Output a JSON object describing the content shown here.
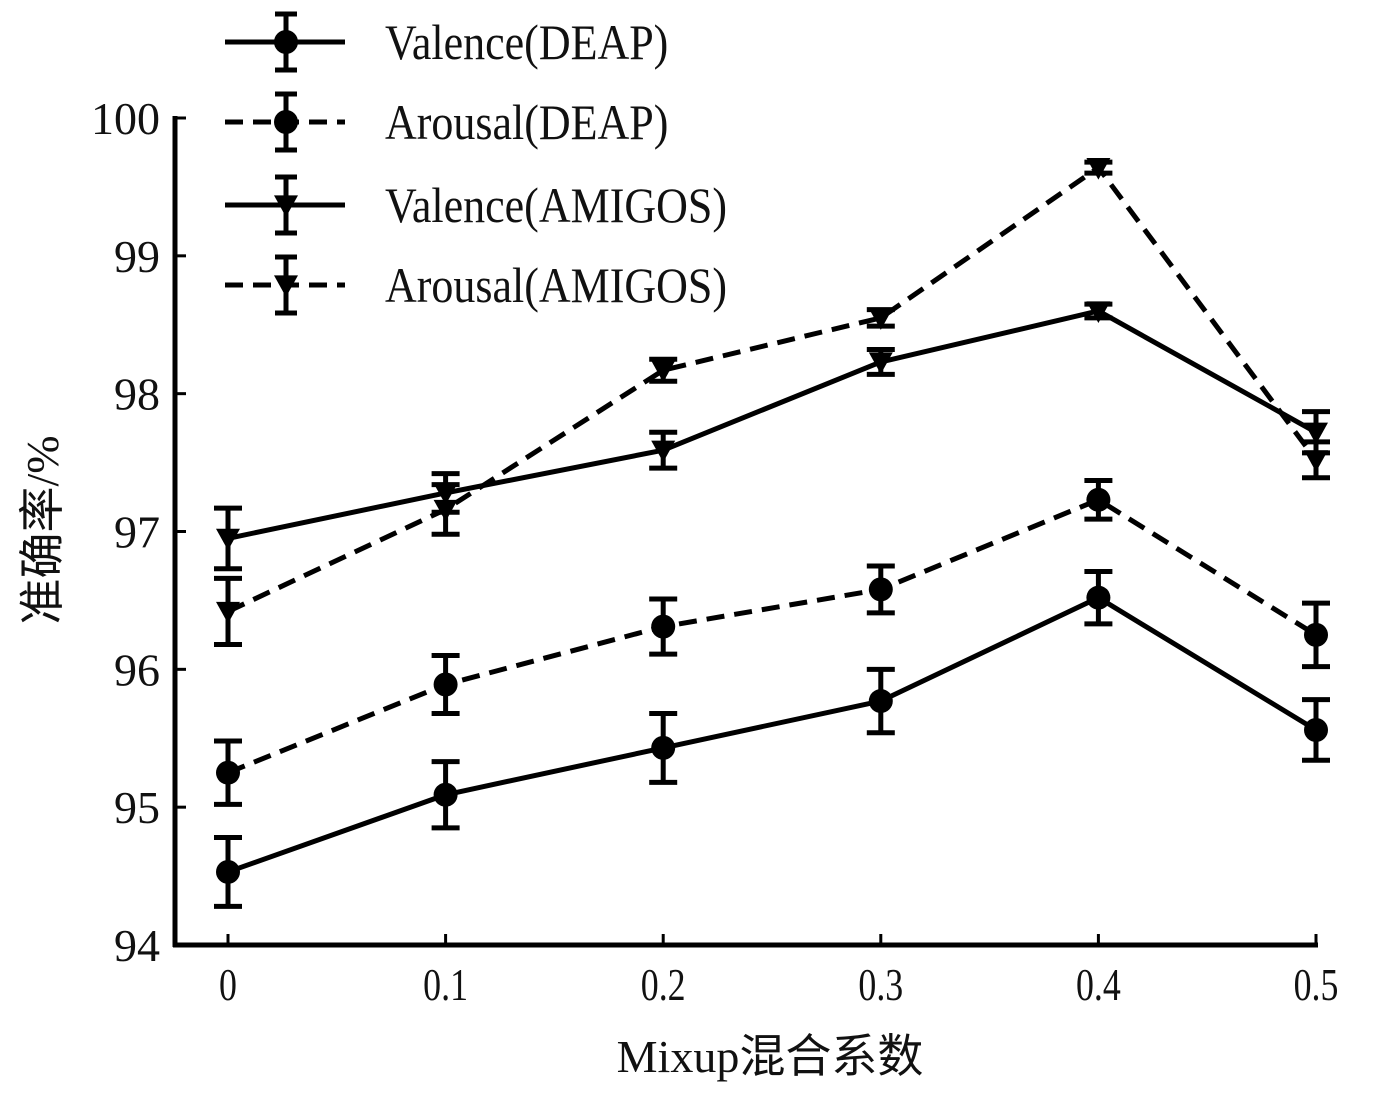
{
  "chart_data": {
    "type": "line",
    "title": "",
    "xlabel": "Mixup混合系数",
    "ylabel": "准确率/%",
    "x": [
      0,
      0.1,
      0.2,
      0.3,
      0.4,
      0.5
    ],
    "x_tick_labels": [
      "0",
      "0.1",
      "0.2",
      "0.3",
      "0.4",
      "0.5"
    ],
    "xlim": [
      -0.025,
      0.5
    ],
    "y_ticks": [
      94,
      95,
      96,
      97,
      98,
      99,
      100
    ],
    "y_tick_labels": [
      "94",
      "95",
      "96",
      "97",
      "98",
      "99",
      "100"
    ],
    "ylim": [
      94,
      100
    ],
    "grid": false,
    "legend_position": "top-left",
    "error_bars": true,
    "series": [
      {
        "name": "Valence(DEAP)",
        "line_style": "solid",
        "marker": "circle",
        "values": [
          94.53,
          95.09,
          95.43,
          95.77,
          96.52,
          95.56
        ],
        "errors": [
          0.25,
          0.24,
          0.25,
          0.23,
          0.19,
          0.22
        ]
      },
      {
        "name": "Arousal(DEAP)",
        "line_style": "dashed",
        "marker": "circle",
        "values": [
          95.25,
          95.89,
          96.31,
          96.58,
          97.23,
          96.25
        ],
        "errors": [
          0.23,
          0.21,
          0.2,
          0.17,
          0.14,
          0.23
        ]
      },
      {
        "name": "Valence(AMIGOS)",
        "line_style": "solid",
        "marker": "triangle-down",
        "values": [
          96.95,
          97.28,
          97.59,
          98.23,
          98.6,
          97.72
        ],
        "errors": [
          0.22,
          0.14,
          0.13,
          0.09,
          0.05,
          0.15
        ]
      },
      {
        "name": "Arousal(AMIGOS)",
        "line_style": "dashed",
        "marker": "triangle-down",
        "values": [
          96.42,
          97.16,
          98.17,
          98.55,
          99.64,
          97.52
        ],
        "errors": [
          0.24,
          0.18,
          0.08,
          0.06,
          0.04,
          0.13
        ]
      }
    ]
  }
}
